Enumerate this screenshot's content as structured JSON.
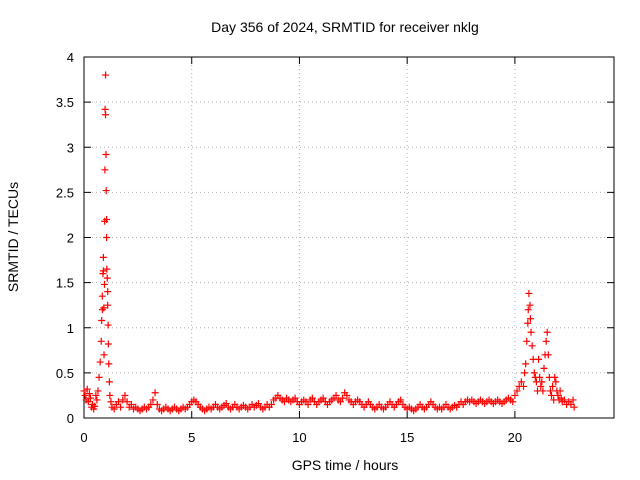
{
  "chart_data": {
    "type": "scatter",
    "title": "Day 356 of 2024, SRMTID for receiver nklg",
    "xlabel": "GPS time / hours",
    "ylabel": "SRMTID / TECUs",
    "xlim": [
      0,
      24.6
    ],
    "ylim": [
      0,
      4
    ],
    "xticks": [
      0,
      5,
      10,
      15,
      20
    ],
    "yticks": [
      0,
      0.5,
      1,
      1.5,
      2,
      2.5,
      3,
      3.5,
      4
    ],
    "xtick_labels": [
      "0",
      "5",
      "10",
      "15",
      "20"
    ],
    "ytick_labels": [
      "0",
      "0.5",
      "1",
      "1.5",
      "2",
      "2.5",
      "3",
      "3.5",
      "4"
    ],
    "grid": true,
    "marker": "+",
    "color": "#ff0000",
    "series": [
      {
        "name": "SRMTID",
        "points": [
          [
            0.0,
            0.3
          ],
          [
            0.05,
            0.25
          ],
          [
            0.1,
            0.2
          ],
          [
            0.15,
            0.32
          ],
          [
            0.2,
            0.18
          ],
          [
            0.25,
            0.27
          ],
          [
            0.3,
            0.22
          ],
          [
            0.35,
            0.12
          ],
          [
            0.4,
            0.15
          ],
          [
            0.45,
            0.1
          ],
          [
            0.5,
            0.13
          ],
          [
            0.55,
            0.25
          ],
          [
            0.6,
            0.2
          ],
          [
            0.65,
            0.3
          ],
          [
            0.7,
            0.45
          ],
          [
            0.75,
            0.62
          ],
          [
            0.8,
            0.85
          ],
          [
            0.82,
            1.08
          ],
          [
            0.85,
            1.2
          ],
          [
            0.85,
            1.35
          ],
          [
            0.88,
            1.6
          ],
          [
            0.9,
            1.63
          ],
          [
            0.9,
            1.78
          ],
          [
            0.92,
            1.22
          ],
          [
            0.93,
            0.7
          ],
          [
            0.95,
            1.48
          ],
          [
            0.96,
            2.18
          ],
          [
            0.97,
            2.75
          ],
          [
            0.98,
            3.42
          ],
          [
            1.0,
            3.8
          ],
          [
            1.0,
            3.36
          ],
          [
            1.02,
            2.92
          ],
          [
            1.03,
            2.52
          ],
          [
            1.05,
            2.2
          ],
          [
            1.05,
            2.0
          ],
          [
            1.06,
            1.65
          ],
          [
            1.08,
            1.55
          ],
          [
            1.1,
            1.4
          ],
          [
            1.1,
            1.25
          ],
          [
            1.12,
            1.03
          ],
          [
            1.13,
            0.82
          ],
          [
            1.15,
            0.6
          ],
          [
            1.18,
            0.4
          ],
          [
            1.2,
            0.25
          ],
          [
            1.25,
            0.18
          ],
          [
            1.3,
            0.12
          ],
          [
            1.4,
            0.1
          ],
          [
            1.5,
            0.15
          ],
          [
            1.6,
            0.18
          ],
          [
            1.7,
            0.12
          ],
          [
            1.8,
            0.2
          ],
          [
            1.9,
            0.25
          ],
          [
            2.0,
            0.18
          ],
          [
            2.1,
            0.12
          ],
          [
            2.2,
            0.15
          ],
          [
            2.3,
            0.1
          ],
          [
            2.4,
            0.12
          ],
          [
            2.5,
            0.1
          ],
          [
            2.6,
            0.08
          ],
          [
            2.7,
            0.1
          ],
          [
            2.8,
            0.12
          ],
          [
            2.9,
            0.1
          ],
          [
            3.0,
            0.12
          ],
          [
            3.1,
            0.15
          ],
          [
            3.2,
            0.2
          ],
          [
            3.3,
            0.28
          ],
          [
            3.4,
            0.15
          ],
          [
            3.5,
            0.1
          ],
          [
            3.6,
            0.08
          ],
          [
            3.7,
            0.1
          ],
          [
            3.8,
            0.12
          ],
          [
            3.9,
            0.1
          ],
          [
            4.0,
            0.08
          ],
          [
            4.1,
            0.1
          ],
          [
            4.2,
            0.12
          ],
          [
            4.3,
            0.1
          ],
          [
            4.4,
            0.08
          ],
          [
            4.5,
            0.1
          ],
          [
            4.6,
            0.12
          ],
          [
            4.7,
            0.1
          ],
          [
            4.8,
            0.12
          ],
          [
            4.9,
            0.15
          ],
          [
            5.0,
            0.18
          ],
          [
            5.1,
            0.2
          ],
          [
            5.2,
            0.18
          ],
          [
            5.3,
            0.15
          ],
          [
            5.4,
            0.12
          ],
          [
            5.5,
            0.1
          ],
          [
            5.6,
            0.08
          ],
          [
            5.7,
            0.1
          ],
          [
            5.8,
            0.12
          ],
          [
            5.9,
            0.1
          ],
          [
            6.0,
            0.12
          ],
          [
            6.1,
            0.15
          ],
          [
            6.2,
            0.12
          ],
          [
            6.3,
            0.1
          ],
          [
            6.4,
            0.12
          ],
          [
            6.5,
            0.14
          ],
          [
            6.6,
            0.16
          ],
          [
            6.7,
            0.12
          ],
          [
            6.8,
            0.1
          ],
          [
            6.9,
            0.12
          ],
          [
            7.0,
            0.15
          ],
          [
            7.1,
            0.12
          ],
          [
            7.2,
            0.1
          ],
          [
            7.3,
            0.12
          ],
          [
            7.4,
            0.14
          ],
          [
            7.5,
            0.12
          ],
          [
            7.6,
            0.1
          ],
          [
            7.7,
            0.12
          ],
          [
            7.8,
            0.15
          ],
          [
            7.9,
            0.12
          ],
          [
            8.0,
            0.14
          ],
          [
            8.1,
            0.16
          ],
          [
            8.2,
            0.12
          ],
          [
            8.3,
            0.1
          ],
          [
            8.4,
            0.12
          ],
          [
            8.5,
            0.15
          ],
          [
            8.6,
            0.12
          ],
          [
            8.7,
            0.15
          ],
          [
            8.8,
            0.2
          ],
          [
            8.9,
            0.22
          ],
          [
            9.0,
            0.25
          ],
          [
            9.1,
            0.22
          ],
          [
            9.2,
            0.2
          ],
          [
            9.3,
            0.18
          ],
          [
            9.4,
            0.22
          ],
          [
            9.5,
            0.2
          ],
          [
            9.6,
            0.18
          ],
          [
            9.7,
            0.2
          ],
          [
            9.8,
            0.22
          ],
          [
            9.9,
            0.18
          ],
          [
            10.0,
            0.15
          ],
          [
            10.1,
            0.18
          ],
          [
            10.2,
            0.2
          ],
          [
            10.3,
            0.18
          ],
          [
            10.4,
            0.15
          ],
          [
            10.5,
            0.2
          ],
          [
            10.6,
            0.22
          ],
          [
            10.7,
            0.18
          ],
          [
            10.8,
            0.15
          ],
          [
            10.9,
            0.18
          ],
          [
            11.0,
            0.2
          ],
          [
            11.1,
            0.22
          ],
          [
            11.2,
            0.18
          ],
          [
            11.3,
            0.15
          ],
          [
            11.4,
            0.18
          ],
          [
            11.5,
            0.2
          ],
          [
            11.6,
            0.22
          ],
          [
            11.7,
            0.25
          ],
          [
            11.8,
            0.2
          ],
          [
            11.9,
            0.18
          ],
          [
            12.0,
            0.22
          ],
          [
            12.1,
            0.28
          ],
          [
            12.2,
            0.25
          ],
          [
            12.3,
            0.2
          ],
          [
            12.4,
            0.18
          ],
          [
            12.5,
            0.15
          ],
          [
            12.6,
            0.18
          ],
          [
            12.7,
            0.2
          ],
          [
            12.8,
            0.18
          ],
          [
            12.9,
            0.15
          ],
          [
            13.0,
            0.12
          ],
          [
            13.1,
            0.15
          ],
          [
            13.2,
            0.18
          ],
          [
            13.3,
            0.15
          ],
          [
            13.4,
            0.12
          ],
          [
            13.5,
            0.1
          ],
          [
            13.6,
            0.12
          ],
          [
            13.7,
            0.15
          ],
          [
            13.8,
            0.12
          ],
          [
            13.9,
            0.1
          ],
          [
            14.0,
            0.12
          ],
          [
            14.1,
            0.15
          ],
          [
            14.2,
            0.18
          ],
          [
            14.3,
            0.15
          ],
          [
            14.4,
            0.12
          ],
          [
            14.5,
            0.15
          ],
          [
            14.6,
            0.18
          ],
          [
            14.7,
            0.2
          ],
          [
            14.8,
            0.15
          ],
          [
            14.9,
            0.12
          ],
          [
            15.0,
            0.1
          ],
          [
            15.1,
            0.12
          ],
          [
            15.2,
            0.1
          ],
          [
            15.3,
            0.08
          ],
          [
            15.4,
            0.1
          ],
          [
            15.5,
            0.12
          ],
          [
            15.6,
            0.15
          ],
          [
            15.7,
            0.12
          ],
          [
            15.8,
            0.1
          ],
          [
            15.9,
            0.12
          ],
          [
            16.0,
            0.15
          ],
          [
            16.1,
            0.18
          ],
          [
            16.2,
            0.15
          ],
          [
            16.3,
            0.12
          ],
          [
            16.4,
            0.1
          ],
          [
            16.5,
            0.12
          ],
          [
            16.6,
            0.1
          ],
          [
            16.7,
            0.12
          ],
          [
            16.8,
            0.15
          ],
          [
            16.9,
            0.12
          ],
          [
            17.0,
            0.1
          ],
          [
            17.1,
            0.12
          ],
          [
            17.2,
            0.14
          ],
          [
            17.3,
            0.12
          ],
          [
            17.4,
            0.15
          ],
          [
            17.5,
            0.18
          ],
          [
            17.6,
            0.15
          ],
          [
            17.7,
            0.18
          ],
          [
            17.8,
            0.2
          ],
          [
            17.9,
            0.18
          ],
          [
            18.0,
            0.2
          ],
          [
            18.1,
            0.18
          ],
          [
            18.2,
            0.16
          ],
          [
            18.3,
            0.18
          ],
          [
            18.4,
            0.2
          ],
          [
            18.5,
            0.18
          ],
          [
            18.6,
            0.16
          ],
          [
            18.7,
            0.18
          ],
          [
            18.8,
            0.2
          ],
          [
            18.9,
            0.18
          ],
          [
            19.0,
            0.16
          ],
          [
            19.1,
            0.18
          ],
          [
            19.2,
            0.2
          ],
          [
            19.3,
            0.18
          ],
          [
            19.4,
            0.16
          ],
          [
            19.5,
            0.18
          ],
          [
            19.6,
            0.2
          ],
          [
            19.7,
            0.22
          ],
          [
            19.8,
            0.2
          ],
          [
            19.9,
            0.18
          ],
          [
            20.0,
            0.25
          ],
          [
            20.1,
            0.3
          ],
          [
            20.2,
            0.35
          ],
          [
            20.3,
            0.4
          ],
          [
            20.4,
            0.35
          ],
          [
            20.45,
            0.5
          ],
          [
            20.5,
            0.6
          ],
          [
            20.55,
            0.85
          ],
          [
            20.6,
            1.05
          ],
          [
            20.62,
            1.2
          ],
          [
            20.65,
            1.38
          ],
          [
            20.7,
            1.25
          ],
          [
            20.72,
            1.1
          ],
          [
            20.75,
            0.95
          ],
          [
            20.8,
            0.8
          ],
          [
            20.85,
            0.65
          ],
          [
            20.9,
            0.5
          ],
          [
            20.95,
            0.45
          ],
          [
            21.0,
            0.4
          ],
          [
            21.05,
            0.3
          ],
          [
            21.1,
            0.65
          ],
          [
            21.15,
            0.45
          ],
          [
            21.2,
            0.35
          ],
          [
            21.25,
            0.4
          ],
          [
            21.3,
            0.3
          ],
          [
            21.35,
            0.55
          ],
          [
            21.4,
            0.7
          ],
          [
            21.45,
            0.85
          ],
          [
            21.5,
            0.95
          ],
          [
            21.55,
            0.7
          ],
          [
            21.6,
            0.45
          ],
          [
            21.65,
            0.3
          ],
          [
            21.7,
            0.25
          ],
          [
            21.75,
            0.35
          ],
          [
            21.8,
            0.2
          ],
          [
            21.85,
            0.45
          ],
          [
            21.9,
            0.4
          ],
          [
            21.95,
            0.3
          ],
          [
            22.0,
            0.25
          ],
          [
            22.05,
            0.2
          ],
          [
            22.1,
            0.3
          ],
          [
            22.15,
            0.22
          ],
          [
            22.2,
            0.18
          ],
          [
            22.3,
            0.2
          ],
          [
            22.4,
            0.15
          ],
          [
            22.5,
            0.18
          ],
          [
            22.6,
            0.15
          ],
          [
            22.7,
            0.2
          ],
          [
            22.75,
            0.12
          ]
        ]
      }
    ]
  }
}
